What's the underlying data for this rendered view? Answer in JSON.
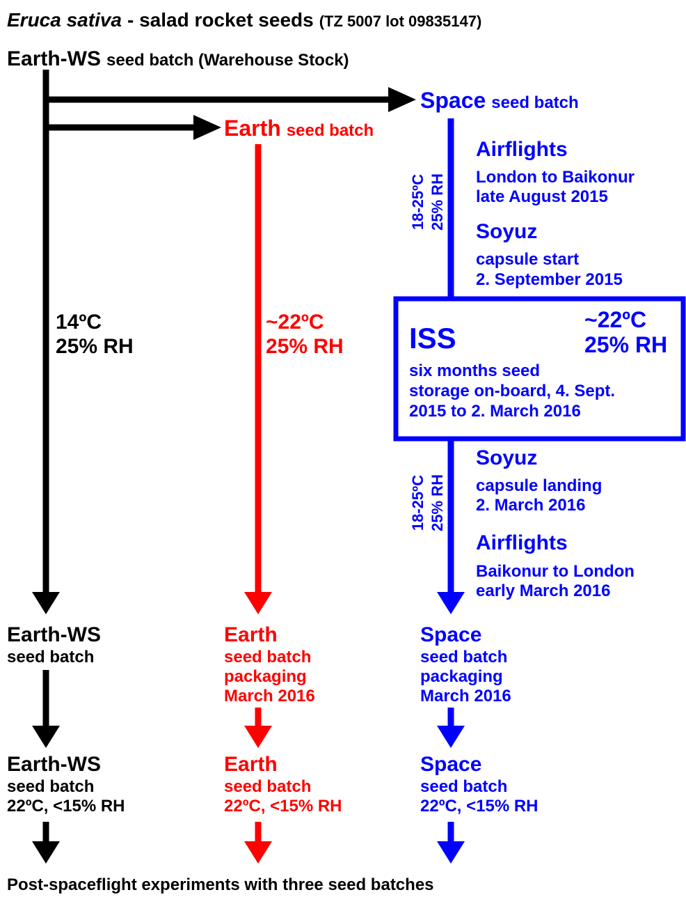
{
  "title": {
    "species": "Eruca sativa",
    "text": "- salad rocket seeds",
    "lot": "(TZ 5007 lot 09835147)"
  },
  "source": {
    "name": "Earth-WS",
    "detail": "seed batch (Warehouse Stock)"
  },
  "space_batch": {
    "name": "Space",
    "detail": "seed batch"
  },
  "earth_batch": {
    "name": "Earth",
    "detail": "seed batch"
  },
  "earthws_conditions": [
    "14ºC",
    "25% RH"
  ],
  "earth_conditions": [
    "~22ºC",
    "25% RH"
  ],
  "transport_conditions": [
    [
      "18-25ºC",
      "25% RH"
    ],
    [
      "18-25ºC",
      "25% RH"
    ]
  ],
  "outbound": [
    {
      "title": "Airflights",
      "lines": [
        "London to Baikonur",
        "late August 2015"
      ]
    },
    {
      "title": "Soyuz",
      "lines": [
        "capsule start",
        "2. September 2015"
      ]
    }
  ],
  "iss": {
    "title": "ISS",
    "conditions": [
      "~22ºC",
      "25% RH"
    ],
    "lines": [
      "six months seed",
      "storage on-board, 4. Sept.",
      "2015 to 2. March 2016"
    ]
  },
  "return": [
    {
      "title": "Soyuz",
      "lines": [
        "capsule landing",
        "2. March 2016"
      ]
    },
    {
      "title": "Airflights",
      "lines": [
        "Baikonur to London",
        "early March 2016"
      ]
    }
  ],
  "packaging": [
    {
      "title": "Earth-WS",
      "lines": [
        "seed batch"
      ]
    },
    {
      "title": "Earth",
      "lines": [
        "seed batch",
        "packaging",
        "March 2016"
      ]
    },
    {
      "title": "Space",
      "lines": [
        "seed batch",
        "packaging",
        "March 2016"
      ]
    }
  ],
  "storage": [
    {
      "title": "Earth-WS",
      "lines": [
        "seed batch",
        "22ºC, <15% RH"
      ]
    },
    {
      "title": "Earth",
      "lines": [
        "seed batch",
        "22ºC, <15% RH"
      ]
    },
    {
      "title": "Space",
      "lines": [
        "seed batch",
        "22ºC, <15% RH"
      ]
    }
  ],
  "footer": "Post-spaceflight experiments with three seed batches"
}
